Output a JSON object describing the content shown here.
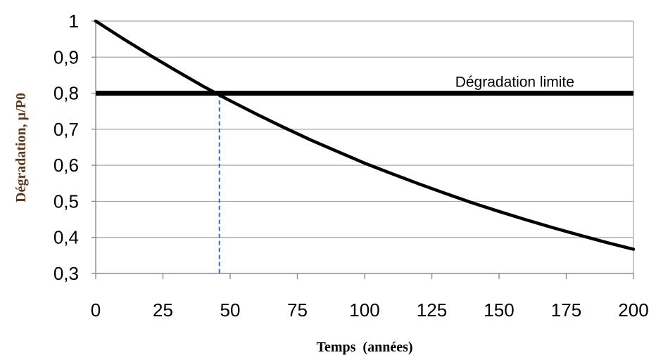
{
  "chart_data": {
    "type": "line",
    "xlabel": "Temps  (années)",
    "ylabel": "Dégradation, µ/P0",
    "xlim": [
      0,
      200
    ],
    "ylim": [
      0.3,
      1
    ],
    "x_ticks": [
      0,
      25,
      50,
      75,
      100,
      125,
      150,
      175,
      200
    ],
    "x_tick_labels": [
      "0",
      "25",
      "50",
      "75",
      "100",
      "125",
      "150",
      "175",
      "200"
    ],
    "y_ticks": [
      0.3,
      0.4,
      0.5,
      0.6,
      0.7,
      0.8,
      0.9,
      1
    ],
    "y_tick_labels": [
      "0,3",
      "0,4",
      "0,5",
      "0,6",
      "0,7",
      "0,8",
      "0,9",
      "1"
    ],
    "grid": true,
    "series": [
      {
        "color": "#000000",
        "x": [
          0,
          10,
          20,
          30,
          40,
          45,
          50,
          60,
          70,
          80,
          90,
          100,
          110,
          120,
          130,
          140,
          150,
          160,
          170,
          180,
          190,
          200
        ],
        "y": [
          1.0,
          0.952,
          0.906,
          0.862,
          0.819,
          0.799,
          0.779,
          0.741,
          0.705,
          0.67,
          0.638,
          0.606,
          0.577,
          0.549,
          0.522,
          0.496,
          0.472,
          0.449,
          0.427,
          0.406,
          0.386,
          0.367
        ]
      }
    ],
    "threshold": {
      "label": "Dégradation limite",
      "y": 0.8,
      "color": "#000000"
    },
    "crossing": {
      "x": 46,
      "y": 0.8,
      "color": "#2e6fd0"
    }
  }
}
